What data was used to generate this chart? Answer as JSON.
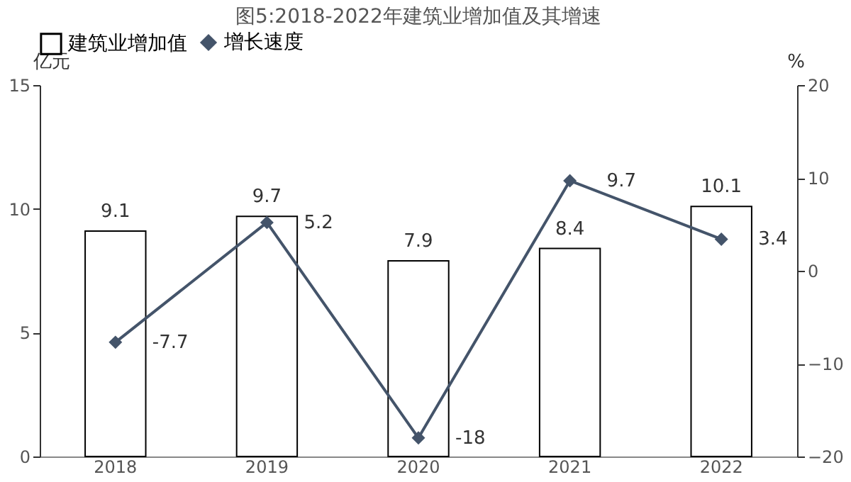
{
  "chart_data": {
    "type": "bar",
    "title": "图5:2018-2022年建筑业增加值及其增速",
    "ylabel": "亿元",
    "y2label": "%",
    "categories": [
      "2018",
      "2019",
      "2020",
      "2021",
      "2022"
    ],
    "series": [
      {
        "name": "建筑业增加值",
        "color": "#ffffff",
        "values": [
          9.1,
          9.7,
          7.9,
          8.4,
          10.1
        ]
      },
      {
        "name": "增长速度",
        "type": "line",
        "axis": "y2",
        "color": "#44546a",
        "values": [
          -7.7,
          5.2,
          -18,
          9.7,
          3.4
        ]
      }
    ],
    "ylim": [
      0,
      15
    ],
    "yticks": [
      0,
      5,
      10,
      15
    ],
    "y2lim": [
      -20,
      20
    ],
    "y2ticks": [
      -20,
      -10,
      0,
      10,
      20
    ],
    "data_labels": true,
    "legend": "top",
    "grid": false,
    "marker": "diamond",
    "line_style": "solid"
  }
}
